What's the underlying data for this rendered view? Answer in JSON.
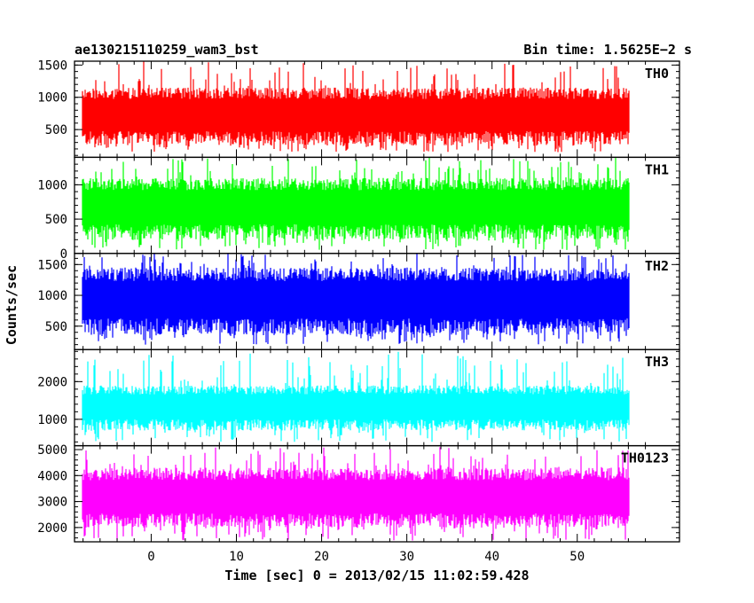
{
  "chart_data": {
    "type": "line",
    "title_left": "ae130215110259_wam3_bst",
    "title_right": "Bin time: 1.5625E−2 s",
    "xlabel": "Time [sec] 0 = 2013/02/15 11:02:59.428",
    "ylabel": "Counts/sec",
    "xlim": [
      -9,
      62
    ],
    "x_ticks": [
      0,
      10,
      20,
      30,
      40,
      50
    ],
    "x_tick_labels": [
      "0",
      "10",
      "20",
      "30",
      "40",
      "50"
    ],
    "x_data_range": [
      -8,
      56
    ],
    "grid": false,
    "panels": [
      {
        "name": "TH0",
        "color": "#ff0000",
        "ylim": [
          70,
          1560
        ],
        "y_ticks": [
          500,
          1000,
          1500
        ],
        "y_tick_labels": [
          "500",
          "1000",
          "1500"
        ],
        "mean": 700,
        "low_typical": 250,
        "high_typical": 1150,
        "min": 150,
        "max": 1560
      },
      {
        "name": "TH1",
        "color": "#00ff00",
        "ylim": [
          0,
          1400
        ],
        "y_ticks": [
          0,
          500,
          1000
        ],
        "y_tick_labels": [
          "0",
          "500",
          "1000"
        ],
        "mean": 650,
        "low_typical": 200,
        "high_typical": 1100,
        "min": 50,
        "max": 1400
      },
      {
        "name": "TH2",
        "color": "#0000ff",
        "ylim": [
          120,
          1680
        ],
        "y_ticks": [
          500,
          1000,
          1500
        ],
        "y_tick_labels": [
          "500",
          "1000",
          "1500"
        ],
        "mean": 900,
        "low_typical": 350,
        "high_typical": 1450,
        "min": 200,
        "max": 1680
      },
      {
        "name": "TH3",
        "color": "#00ffff",
        "ylim": [
          300,
          2850
        ],
        "y_ticks": [
          1000,
          2000
        ],
        "y_tick_labels": [
          "1000",
          "2000"
        ],
        "mean": 1300,
        "low_typical": 700,
        "high_typical": 1900,
        "min": 400,
        "max": 2800
      },
      {
        "name": "TH0123",
        "color": "#ff00ff",
        "ylim": [
          1450,
          5150
        ],
        "y_ticks": [
          2000,
          3000,
          4000,
          5000
        ],
        "y_tick_labels": [
          "2000",
          "3000",
          "4000",
          "5000"
        ],
        "mean": 3100,
        "low_typical": 2000,
        "high_typical": 4300,
        "min": 1500,
        "max": 5100
      }
    ]
  }
}
